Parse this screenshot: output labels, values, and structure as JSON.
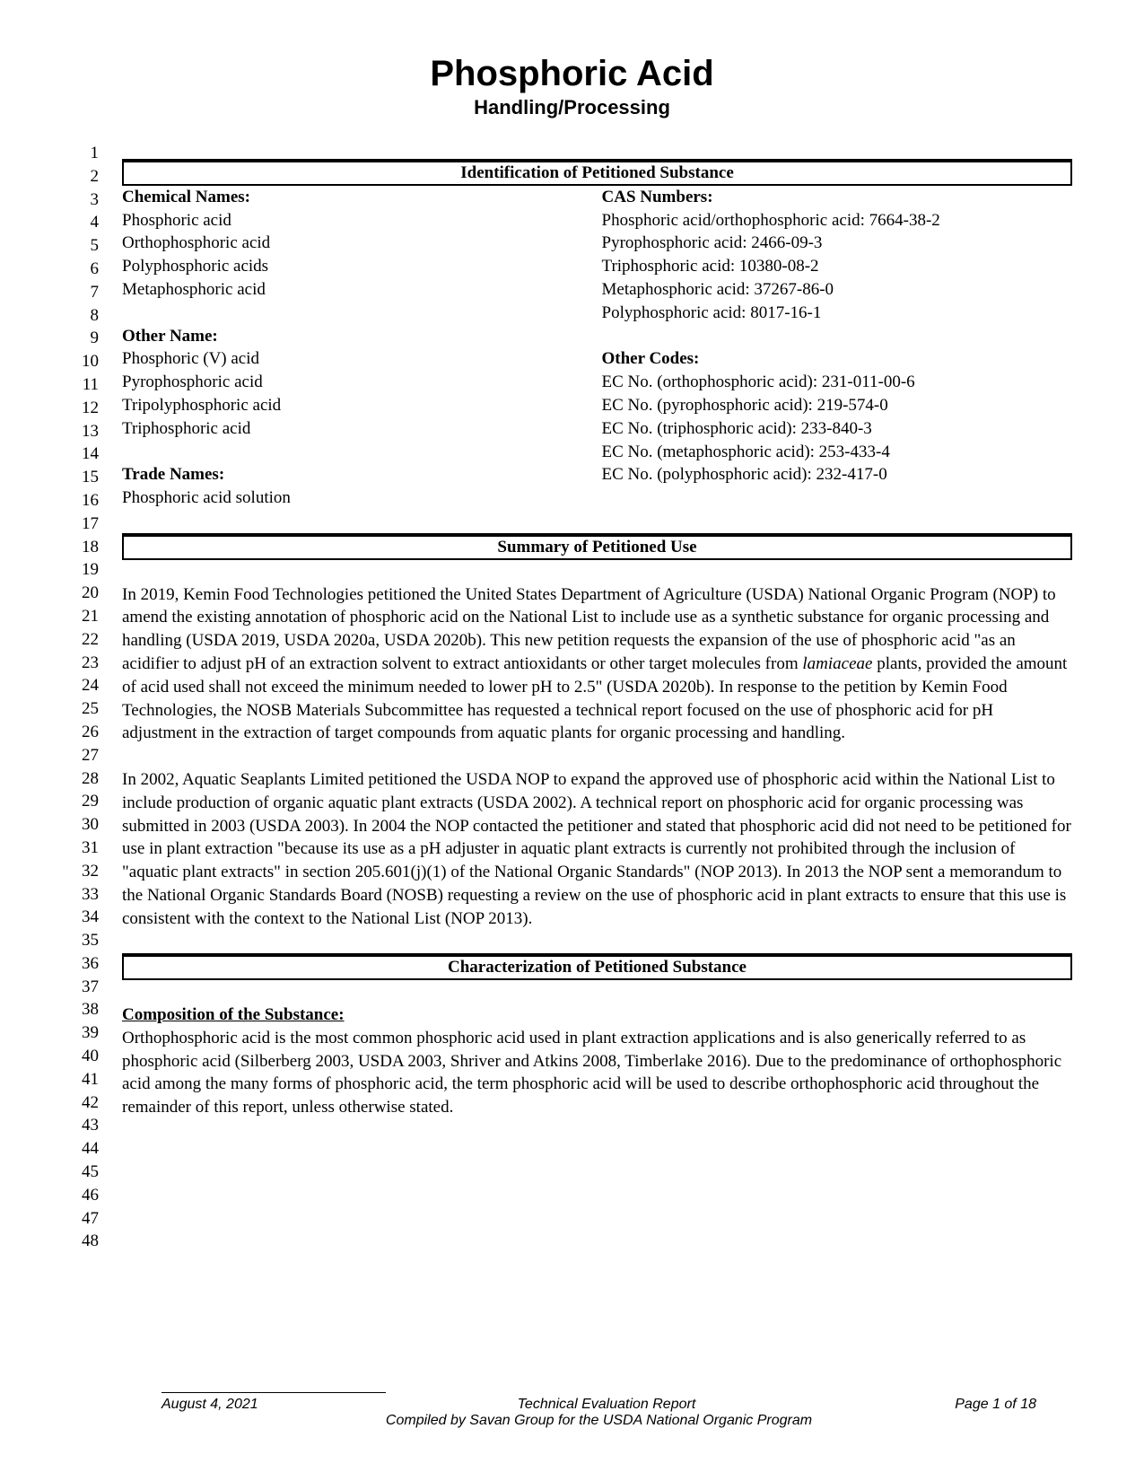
{
  "title": "Phosphoric Acid",
  "subtitle": "Handling/Processing",
  "line_count": 48,
  "sections": {
    "identification": {
      "heading": "Identification of Petitioned Substance",
      "left": {
        "chemical_names_label": "Chemical Names:",
        "chemical_names": [
          "Phosphoric acid",
          "Orthophosphoric acid",
          "Polyphosphoric acids",
          "Metaphosphoric acid"
        ],
        "other_name_label": "Other Name:",
        "other_names": [
          "Phosphoric (V) acid",
          "Pyrophosphoric acid",
          "Tripolyphosphoric acid",
          "Triphosphoric acid"
        ],
        "trade_names_label": "Trade Names:",
        "trade_names": [
          "Phosphoric acid solution"
        ]
      },
      "right": {
        "cas_label": "CAS Numbers:",
        "cas_numbers": [
          "Phosphoric acid/orthophosphoric acid: 7664-38-2",
          "Pyrophosphoric acid: 2466-09-3",
          "Triphosphoric acid: 10380-08-2",
          "Metaphosphoric acid: 37267-86-0",
          "Polyphosphoric acid: 8017-16-1"
        ],
        "other_codes_label": "Other Codes:",
        "other_codes": [
          "EC No. (orthophosphoric acid): 231-011-00-6",
          "EC No. (pyrophosphoric acid): 219-574-0",
          "EC No. (triphosphoric acid): 233-840-3",
          "EC No. (metaphosphoric acid): 253-433-4",
          "EC No. (polyphosphoric acid): 232-417-0"
        ]
      }
    },
    "summary": {
      "heading": "Summary of Petitioned Use",
      "para1_prefix": "In 2019, Kemin Food Technologies petitioned the United States Department of Agriculture (USDA) National Organic Program (NOP) to amend the existing annotation of phosphoric acid on the National List to include use as a synthetic substance for organic processing and handling (USDA 2019, USDA 2020a, USDA 2020b). This new petition requests the expansion of the use of phosphoric acid \"as an acidifier to adjust pH of an extraction solvent to extract antioxidants or other target molecules from ",
      "para1_italic": "lamiaceae",
      "para1_suffix": " plants, provided the amount of acid used shall not exceed the minimum needed to lower pH to 2.5\" (USDA 2020b). In response to the petition by Kemin Food Technologies, the NOSB Materials Subcommittee has requested a technical report focused on the use of phosphoric acid for pH adjustment in the extraction of target compounds from aquatic plants for organic processing and handling.",
      "para2": "In 2002, Aquatic Seaplants Limited petitioned the USDA NOP to expand the approved use of phosphoric acid within the National List to include production of organic aquatic plant extracts (USDA 2002). A technical report on phosphoric acid for organic processing was submitted in 2003 (USDA 2003). In 2004 the NOP contacted the petitioner and stated that phosphoric acid did not need to be petitioned for use in plant extraction \"because its use as a pH adjuster in aquatic plant extracts is currently not prohibited through the inclusion of \"aquatic plant extracts\" in section 205.601(j)(1) of the National Organic Standards\" (NOP 2013). In 2013 the NOP sent a memorandum to the National Organic Standards Board (NOSB) requesting a review on the use of phosphoric acid in plant extracts to ensure that this use is consistent with the context to the National List (NOP 2013)."
    },
    "characterization": {
      "heading": "Characterization of Petitioned Substance",
      "composition_label": "Composition of the Substance:",
      "composition_para": "Orthophosphoric acid is the most common phosphoric acid used in plant extraction applications and is also generically referred to as phosphoric acid (Silberberg 2003, USDA 2003, Shriver and Atkins 2008, Timberlake 2016). Due to the predominance of orthophosphoric acid among the many forms of phosphoric acid, the term phosphoric acid will be used to describe orthophosphoric acid throughout the remainder of this report, unless otherwise stated."
    }
  },
  "footer": {
    "date": "August 4, 2021",
    "center1": "Technical Evaluation Report",
    "center2": "Compiled by Savan Group for the USDA National Organic Program",
    "page": "Page 1 of 18"
  }
}
